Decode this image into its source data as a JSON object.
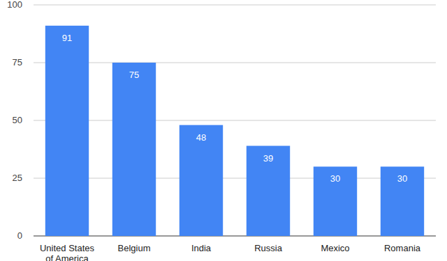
{
  "chart_data": {
    "type": "bar",
    "categories": [
      "United States of America",
      "Belgium",
      "India",
      "Russia",
      "Mexico",
      "Romania"
    ],
    "values": [
      91,
      75,
      48,
      39,
      30,
      30
    ],
    "color": "#4285f4",
    "ylim": [
      0,
      100
    ],
    "yticks": [
      0,
      25,
      50,
      75,
      100
    ],
    "grid": true,
    "data_labels": true
  }
}
